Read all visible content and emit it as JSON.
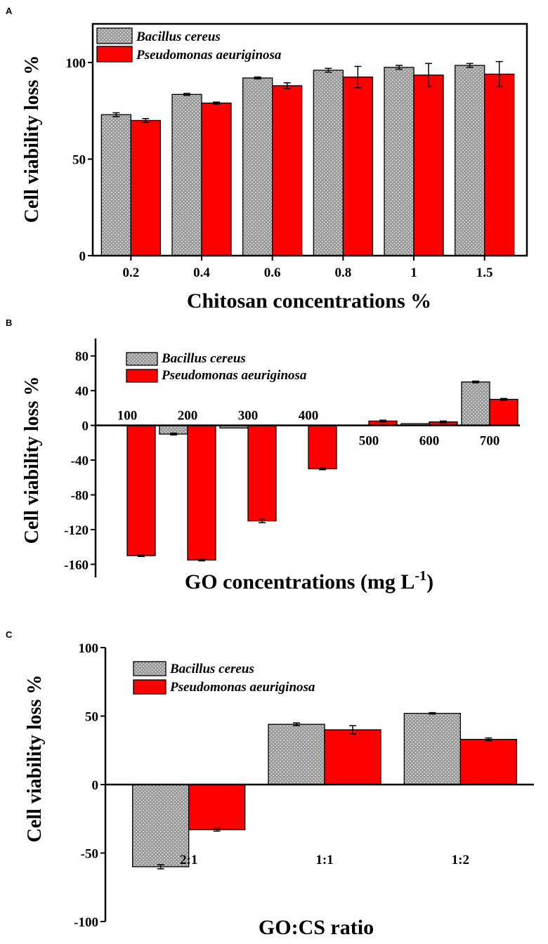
{
  "chart_data": [
    {
      "panel": "A",
      "type": "bar",
      "title": "",
      "xlabel": "Chitosan concentrations %",
      "ylabel": "Cell viability loss %",
      "ylim": [
        0,
        120
      ],
      "yticks": [
        0,
        50,
        100
      ],
      "categories": [
        "0.2",
        "0.4",
        "0.6",
        "0.8",
        "1",
        "1.5"
      ],
      "series": [
        {
          "name": "Bacillus cereus",
          "pattern": "dotted-gray",
          "values": [
            73,
            83.5,
            92,
            96,
            97.5,
            98.5
          ],
          "errors": [
            1,
            0.5,
            0.5,
            1,
            1,
            1
          ]
        },
        {
          "name": "Pseudomonas aeuriginosa",
          "color": "#ff0000",
          "values": [
            70,
            79,
            88,
            92.5,
            93.5,
            94
          ],
          "errors": [
            1,
            0.5,
            1.5,
            5.5,
            6,
            6.5
          ]
        }
      ]
    },
    {
      "panel": "B",
      "type": "bar",
      "title": "",
      "xlabel": "GO concentrations (mg L",
      "xlabel_sup": "-1",
      "xlabel_end": ")",
      "ylabel": "Cell viability loss %",
      "ylim": [
        -175,
        100
      ],
      "yticks": [
        80,
        40,
        0,
        -40,
        -80,
        -120,
        -160
      ],
      "categories": [
        "100",
        "200",
        "300",
        "400",
        "500",
        "600",
        "700"
      ],
      "series": [
        {
          "name": "Bacillus cereus",
          "pattern": "dotted-gray",
          "values": [
            0,
            -10,
            -3,
            0,
            0,
            2,
            50
          ],
          "errors": [
            0,
            1,
            0,
            0,
            0,
            0,
            1
          ]
        },
        {
          "name": "Pseudomonas aeuriginosa",
          "color": "#ff0000",
          "values": [
            -150,
            -155,
            -110,
            -50,
            5,
            4,
            30
          ],
          "errors": [
            1,
            1,
            2,
            1,
            1,
            1,
            1
          ]
        }
      ]
    },
    {
      "panel": "C",
      "type": "bar",
      "title": "",
      "xlabel": "GO:CS ratio",
      "ylabel": "Cell viability loss %",
      "ylim": [
        -100,
        100
      ],
      "yticks": [
        100,
        50,
        0,
        -50,
        -100
      ],
      "categories": [
        "2:1",
        "1:1",
        "1:2"
      ],
      "series": [
        {
          "name": "Bacillus cereus",
          "pattern": "dotted-gray",
          "values": [
            -60,
            44,
            52
          ],
          "errors": [
            1.5,
            1,
            0.5
          ]
        },
        {
          "name": "Pseudomonas aeuriginosa",
          "color": "#ff0000",
          "values": [
            -33,
            40,
            33
          ],
          "errors": [
            1,
            3,
            1
          ]
        }
      ]
    }
  ]
}
